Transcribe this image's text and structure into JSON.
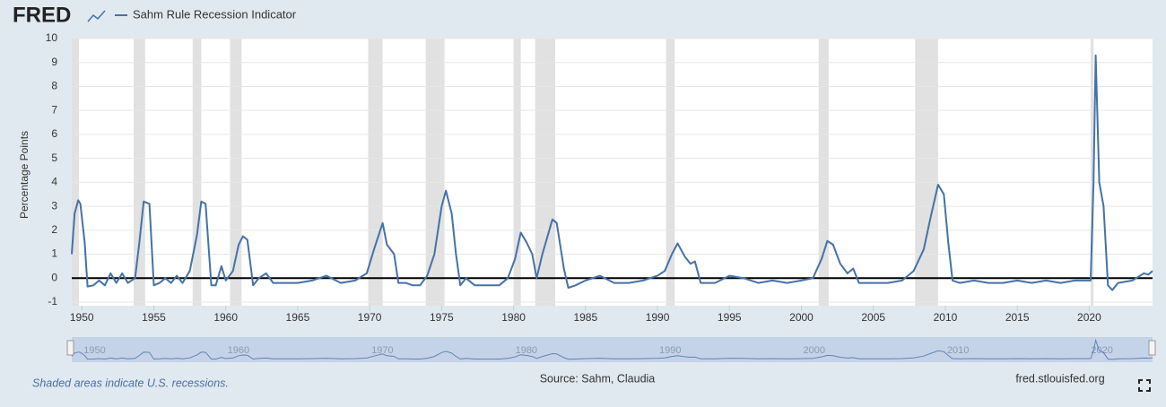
{
  "header": {
    "logo": "FRED"
  },
  "chart_data": {
    "type": "line",
    "y_label": "Percentage Points",
    "series": [
      {
        "name": "Sahm Rule Recession Indicator",
        "color": "#4572a7",
        "x": [
          1949.3,
          1949.5,
          1949.75,
          1949.9,
          1950.2,
          1950.4,
          1950.8,
          1951.2,
          1951.6,
          1952.0,
          1952.4,
          1952.8,
          1953.2,
          1953.7,
          1954.0,
          1954.3,
          1954.7,
          1955.0,
          1955.4,
          1955.8,
          1956.2,
          1956.6,
          1957.0,
          1957.5,
          1958.0,
          1958.3,
          1958.6,
          1959.0,
          1959.3,
          1959.7,
          1960.0,
          1960.5,
          1960.9,
          1961.2,
          1961.5,
          1961.9,
          1962.3,
          1962.8,
          1963.3,
          1964,
          1965,
          1966,
          1967,
          1968,
          1969,
          1969.8,
          1970.3,
          1970.9,
          1971.2,
          1971.7,
          1972.0,
          1972.5,
          1973.0,
          1973.5,
          1974.0,
          1974.5,
          1975.0,
          1975.3,
          1975.7,
          1976.0,
          1976.3,
          1976.7,
          1977.3,
          1978,
          1979,
          1979.6,
          1980.1,
          1980.5,
          1980.9,
          1981.3,
          1981.6,
          1982.0,
          1982.7,
          1983.0,
          1983.5,
          1983.8,
          1984.3,
          1985,
          1986,
          1987,
          1988,
          1989,
          1990,
          1990.5,
          1991.0,
          1991.4,
          1991.9,
          1992.3,
          1992.6,
          1993.0,
          1994,
          1995,
          1996,
          1997,
          1998,
          1999,
          2000,
          2000.8,
          2001.4,
          2001.8,
          2002.2,
          2002.7,
          2003.2,
          2003.6,
          2004.0,
          2005,
          2006,
          2007,
          2007.8,
          2008.5,
          2009.0,
          2009.5,
          2009.9,
          2010.2,
          2010.5,
          2011,
          2012,
          2013,
          2014,
          2015,
          2016,
          2017,
          2018,
          2019,
          2020.1,
          2020.3,
          2020.45,
          2020.7,
          2021.0,
          2021.3,
          2021.6,
          2022,
          2023,
          2023.8,
          2024.1,
          2024.4
        ],
        "values": [
          1.0,
          2.7,
          3.25,
          3.1,
          1.5,
          -0.35,
          -0.3,
          -0.1,
          -0.3,
          0.2,
          -0.2,
          0.2,
          -0.2,
          0.0,
          1.5,
          3.2,
          3.1,
          -0.3,
          -0.2,
          0.0,
          -0.2,
          0.1,
          -0.2,
          0.3,
          1.8,
          3.2,
          3.1,
          -0.3,
          -0.3,
          0.5,
          -0.1,
          0.3,
          1.4,
          1.75,
          1.6,
          -0.3,
          0.0,
          0.2,
          -0.2,
          -0.2,
          -0.2,
          -0.1,
          0.1,
          -0.2,
          -0.1,
          0.2,
          1.2,
          2.3,
          1.4,
          1.0,
          -0.2,
          -0.2,
          -0.3,
          -0.3,
          0.1,
          1.0,
          3.0,
          3.65,
          2.7,
          1.0,
          -0.3,
          0.0,
          -0.3,
          -0.3,
          -0.3,
          0.0,
          0.8,
          1.9,
          1.5,
          1.0,
          0.0,
          1.0,
          2.45,
          2.3,
          0.4,
          -0.4,
          -0.3,
          -0.1,
          0.1,
          -0.2,
          -0.2,
          -0.1,
          0.1,
          0.3,
          1.0,
          1.45,
          0.9,
          0.6,
          0.7,
          -0.2,
          -0.2,
          0.1,
          0.0,
          -0.2,
          -0.1,
          -0.2,
          -0.1,
          0.0,
          0.8,
          1.55,
          1.4,
          0.6,
          0.2,
          0.4,
          -0.2,
          -0.2,
          -0.2,
          -0.1,
          0.3,
          1.2,
          2.6,
          3.9,
          3.5,
          1.5,
          -0.1,
          -0.2,
          -0.1,
          -0.2,
          -0.2,
          -0.1,
          -0.2,
          -0.1,
          -0.2,
          -0.1,
          -0.1,
          4.0,
          9.3,
          4.0,
          3.0,
          -0.3,
          -0.5,
          -0.2,
          -0.1,
          0.2,
          0.15,
          0.3
        ]
      }
    ],
    "recessions": [
      [
        1948.9,
        1949.8
      ],
      [
        1953.6,
        1954.4
      ],
      [
        1957.7,
        1958.3
      ],
      [
        1960.3,
        1961.1
      ],
      [
        1969.9,
        1970.9
      ],
      [
        1973.9,
        1975.2
      ],
      [
        1980.0,
        1980.5
      ],
      [
        1981.5,
        1982.9
      ],
      [
        1990.6,
        1991.2
      ],
      [
        2001.2,
        2001.9
      ],
      [
        2007.9,
        2009.5
      ],
      [
        2020.1,
        2020.3
      ]
    ],
    "xlim": [
      1949.3,
      2024.4
    ],
    "xticks": [
      1950,
      1955,
      1960,
      1965,
      1970,
      1975,
      1980,
      1985,
      1990,
      1995,
      2000,
      2005,
      2010,
      2015,
      2020
    ],
    "ylim": [
      -1,
      10
    ],
    "yticks": [
      -1,
      0,
      1,
      2,
      3,
      4,
      5,
      6,
      7,
      8,
      9,
      10
    ],
    "grid": true,
    "navigator_xticks": [
      1950,
      1960,
      1970,
      1980,
      1990,
      2000,
      2010,
      2020
    ]
  },
  "footer": {
    "note": "Shaded areas indicate U.S. recessions.",
    "source": "Source: Sahm, Claudia",
    "site": "fred.stlouisfed.org"
  }
}
